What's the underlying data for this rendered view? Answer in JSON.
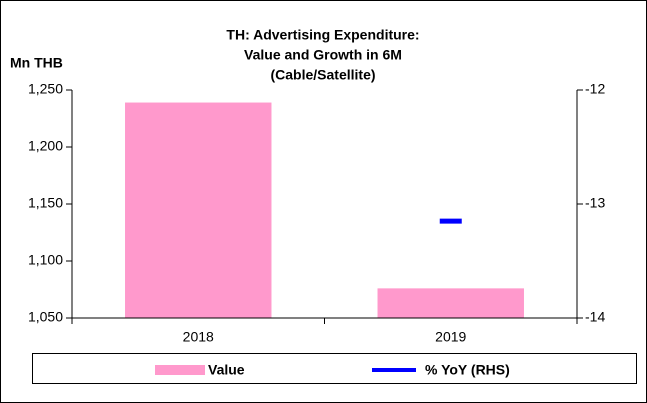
{
  "chart_data": {
    "type": "bar",
    "title": [
      "TH: Advertising Expenditure:",
      "Value and Growth in 6M",
      "(Cable/Satellite)"
    ],
    "ylabel": "Mn THB",
    "categories": [
      "2018",
      "2019"
    ],
    "series": [
      {
        "name": "Value",
        "type": "bar",
        "color": "#ff99cc",
        "values": [
          1239,
          1076
        ]
      },
      {
        "name": "% YoY (RHS)",
        "type": "line",
        "axis": "y2",
        "color": "#0000ff",
        "values": [
          null,
          -13.15
        ]
      }
    ],
    "ylim": [
      1050,
      1250
    ],
    "yticks": [
      {
        "value": 1050,
        "label": "1,050"
      },
      {
        "value": 1100,
        "label": "1,100"
      },
      {
        "value": 1150,
        "label": "1,150"
      },
      {
        "value": 1200,
        "label": "1,200"
      },
      {
        "value": 1250,
        "label": "1,250"
      }
    ],
    "y2lim": [
      -14,
      -12
    ],
    "y2ticks": [
      -12,
      -13,
      -14
    ],
    "legend": "bottom"
  }
}
